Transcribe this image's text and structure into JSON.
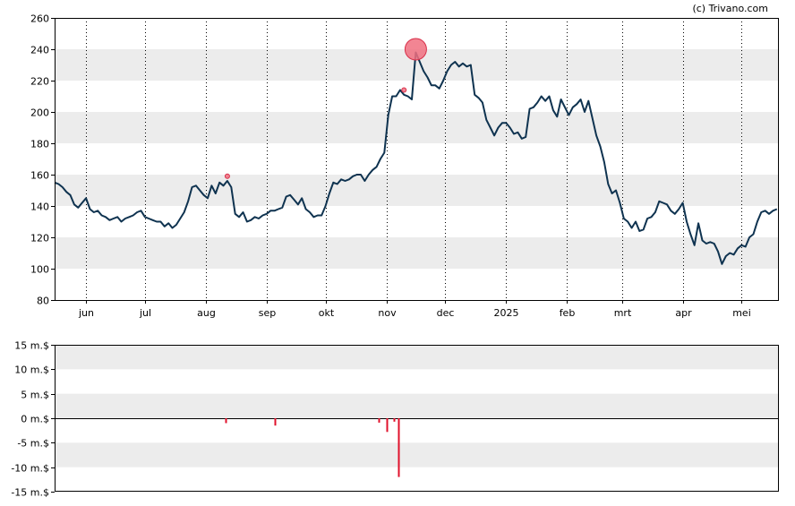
{
  "credit": "(c) Trivano.com",
  "colors": {
    "price_line": "#0f3350",
    "band": "#ececec",
    "insider_bar": "#e0112b",
    "marker_fill": "#f07080",
    "marker_stroke": "#d8304a"
  },
  "chart_data": [
    {
      "type": "line",
      "title": "",
      "ylim": [
        80,
        260
      ],
      "y_ticks": [
        80,
        100,
        120,
        140,
        160,
        180,
        200,
        220,
        240,
        260
      ],
      "y_tick_labels": [
        "80",
        "100",
        "120",
        "140",
        "160",
        "180",
        "200",
        "220",
        "240",
        "260"
      ],
      "x_range": [
        "2024-05-16",
        "2025-05-20"
      ],
      "month_ticks": [
        {
          "date": "2024-06-01",
          "label": "jun"
        },
        {
          "date": "2024-07-01",
          "label": "jul"
        },
        {
          "date": "2024-08-01",
          "label": "aug"
        },
        {
          "date": "2024-09-01",
          "label": "sep"
        },
        {
          "date": "2024-10-01",
          "label": "okt"
        },
        {
          "date": "2024-11-01",
          "label": "nov"
        },
        {
          "date": "2024-12-01",
          "label": "dec"
        },
        {
          "date": "2025-01-01",
          "label": "2025"
        },
        {
          "date": "2025-02-01",
          "label": "feb"
        },
        {
          "date": "2025-03-01",
          "label": "mrt"
        },
        {
          "date": "2025-04-01",
          "label": "apr"
        },
        {
          "date": "2025-05-01",
          "label": "mei"
        }
      ],
      "grid": "alternating horizontal bands, dotted vertical month lines",
      "series": [
        {
          "points": [
            [
              "2024-05-16",
              155
            ],
            [
              "2024-05-18",
              154
            ],
            [
              "2024-05-20",
              152
            ],
            [
              "2024-05-22",
              149
            ],
            [
              "2024-05-24",
              147
            ],
            [
              "2024-05-26",
              141
            ],
            [
              "2024-05-28",
              139
            ],
            [
              "2024-05-30",
              142
            ],
            [
              "2024-06-01",
              145
            ],
            [
              "2024-06-03",
              138
            ],
            [
              "2024-06-05",
              136
            ],
            [
              "2024-06-07",
              137
            ],
            [
              "2024-06-09",
              134
            ],
            [
              "2024-06-11",
              133
            ],
            [
              "2024-06-13",
              131
            ],
            [
              "2024-06-15",
              132
            ],
            [
              "2024-06-17",
              133
            ],
            [
              "2024-06-19",
              130
            ],
            [
              "2024-06-21",
              132
            ],
            [
              "2024-06-23",
              133
            ],
            [
              "2024-06-25",
              134
            ],
            [
              "2024-06-27",
              136
            ],
            [
              "2024-06-29",
              137
            ],
            [
              "2024-07-01",
              133
            ],
            [
              "2024-07-03",
              132
            ],
            [
              "2024-07-05",
              131
            ],
            [
              "2024-07-07",
              130
            ],
            [
              "2024-07-09",
              130
            ],
            [
              "2024-07-11",
              127
            ],
            [
              "2024-07-13",
              129
            ],
            [
              "2024-07-15",
              126
            ],
            [
              "2024-07-17",
              128
            ],
            [
              "2024-07-19",
              132
            ],
            [
              "2024-07-21",
              136
            ],
            [
              "2024-07-23",
              143
            ],
            [
              "2024-07-25",
              152
            ],
            [
              "2024-07-27",
              153
            ],
            [
              "2024-07-29",
              150
            ],
            [
              "2024-07-31",
              147
            ],
            [
              "2024-08-02",
              145
            ],
            [
              "2024-08-04",
              153
            ],
            [
              "2024-08-06",
              148
            ],
            [
              "2024-08-08",
              155
            ],
            [
              "2024-08-10",
              153
            ],
            [
              "2024-08-12",
              156
            ],
            [
              "2024-08-14",
              152
            ],
            [
              "2024-08-16",
              135
            ],
            [
              "2024-08-18",
              133
            ],
            [
              "2024-08-20",
              136
            ],
            [
              "2024-08-22",
              130
            ],
            [
              "2024-08-24",
              131
            ],
            [
              "2024-08-26",
              133
            ],
            [
              "2024-08-28",
              132
            ],
            [
              "2024-08-30",
              134
            ],
            [
              "2024-09-01",
              135
            ],
            [
              "2024-09-03",
              137
            ],
            [
              "2024-09-05",
              137
            ],
            [
              "2024-09-07",
              138
            ],
            [
              "2024-09-09",
              139
            ],
            [
              "2024-09-11",
              146
            ],
            [
              "2024-09-13",
              147
            ],
            [
              "2024-09-15",
              144
            ],
            [
              "2024-09-17",
              141
            ],
            [
              "2024-09-19",
              145
            ],
            [
              "2024-09-21",
              138
            ],
            [
              "2024-09-23",
              136
            ],
            [
              "2024-09-25",
              133
            ],
            [
              "2024-09-27",
              134
            ],
            [
              "2024-09-29",
              134
            ],
            [
              "2024-10-01",
              140
            ],
            [
              "2024-10-03",
              148
            ],
            [
              "2024-10-05",
              155
            ],
            [
              "2024-10-07",
              154
            ],
            [
              "2024-10-09",
              157
            ],
            [
              "2024-10-11",
              156
            ],
            [
              "2024-10-13",
              157
            ],
            [
              "2024-10-15",
              159
            ],
            [
              "2024-10-17",
              160
            ],
            [
              "2024-10-19",
              160
            ],
            [
              "2024-10-21",
              156
            ],
            [
              "2024-10-23",
              160
            ],
            [
              "2024-10-25",
              163
            ],
            [
              "2024-10-27",
              165
            ],
            [
              "2024-10-29",
              170
            ],
            [
              "2024-10-31",
              174
            ],
            [
              "2024-11-02",
              198
            ],
            [
              "2024-11-04",
              210
            ],
            [
              "2024-11-06",
              210
            ],
            [
              "2024-11-08",
              214
            ],
            [
              "2024-11-10",
              211
            ],
            [
              "2024-11-12",
              210
            ],
            [
              "2024-11-14",
              208
            ],
            [
              "2024-11-16",
              238
            ],
            [
              "2024-11-18",
              232
            ],
            [
              "2024-11-20",
              226
            ],
            [
              "2024-11-22",
              222
            ],
            [
              "2024-11-24",
              217
            ],
            [
              "2024-11-26",
              217
            ],
            [
              "2024-11-28",
              215
            ],
            [
              "2024-11-30",
              220
            ],
            [
              "2024-12-02",
              226
            ],
            [
              "2024-12-04",
              230
            ],
            [
              "2024-12-06",
              232
            ],
            [
              "2024-12-08",
              229
            ],
            [
              "2024-12-10",
              231
            ],
            [
              "2024-12-12",
              229
            ],
            [
              "2024-12-14",
              230
            ],
            [
              "2024-12-16",
              211
            ],
            [
              "2024-12-18",
              209
            ],
            [
              "2024-12-20",
              206
            ],
            [
              "2024-12-22",
              195
            ],
            [
              "2024-12-24",
              190
            ],
            [
              "2024-12-26",
              185
            ],
            [
              "2024-12-28",
              190
            ],
            [
              "2024-12-30",
              193
            ],
            [
              "2025-01-01",
              193
            ],
            [
              "2025-01-03",
              190
            ],
            [
              "2025-01-05",
              186
            ],
            [
              "2025-01-07",
              187
            ],
            [
              "2025-01-09",
              183
            ],
            [
              "2025-01-11",
              184
            ],
            [
              "2025-01-13",
              202
            ],
            [
              "2025-01-15",
              203
            ],
            [
              "2025-01-17",
              206
            ],
            [
              "2025-01-19",
              210
            ],
            [
              "2025-01-21",
              207
            ],
            [
              "2025-01-23",
              210
            ],
            [
              "2025-01-25",
              201
            ],
            [
              "2025-01-27",
              197
            ],
            [
              "2025-01-29",
              208
            ],
            [
              "2025-01-31",
              203
            ],
            [
              "2025-02-02",
              198
            ],
            [
              "2025-02-04",
              203
            ],
            [
              "2025-02-06",
              205
            ],
            [
              "2025-02-08",
              208
            ],
            [
              "2025-02-10",
              200
            ],
            [
              "2025-02-12",
              207
            ],
            [
              "2025-02-14",
              196
            ],
            [
              "2025-02-16",
              185
            ],
            [
              "2025-02-18",
              178
            ],
            [
              "2025-02-20",
              168
            ],
            [
              "2025-02-22",
              154
            ],
            [
              "2025-02-24",
              148
            ],
            [
              "2025-02-26",
              150
            ],
            [
              "2025-02-28",
              142
            ],
            [
              "2025-03-02",
              132
            ],
            [
              "2025-03-04",
              130
            ],
            [
              "2025-03-06",
              126
            ],
            [
              "2025-03-08",
              130
            ],
            [
              "2025-03-10",
              124
            ],
            [
              "2025-03-12",
              125
            ],
            [
              "2025-03-14",
              132
            ],
            [
              "2025-03-16",
              133
            ],
            [
              "2025-03-18",
              136
            ],
            [
              "2025-03-20",
              143
            ],
            [
              "2025-03-22",
              142
            ],
            [
              "2025-03-24",
              141
            ],
            [
              "2025-03-26",
              137
            ],
            [
              "2025-03-28",
              135
            ],
            [
              "2025-03-30",
              138
            ],
            [
              "2025-04-01",
              142
            ],
            [
              "2025-04-03",
              130
            ],
            [
              "2025-04-05",
              122
            ],
            [
              "2025-04-07",
              115
            ],
            [
              "2025-04-09",
              129
            ],
            [
              "2025-04-11",
              118
            ],
            [
              "2025-04-13",
              116
            ],
            [
              "2025-04-15",
              117
            ],
            [
              "2025-04-17",
              116
            ],
            [
              "2025-04-19",
              111
            ],
            [
              "2025-04-21",
              103
            ],
            [
              "2025-04-23",
              108
            ],
            [
              "2025-04-25",
              110
            ],
            [
              "2025-04-27",
              109
            ],
            [
              "2025-04-29",
              113
            ],
            [
              "2025-05-01",
              115
            ],
            [
              "2025-05-03",
              114
            ],
            [
              "2025-05-05",
              120
            ],
            [
              "2025-05-07",
              122
            ],
            [
              "2025-05-09",
              130
            ],
            [
              "2025-05-11",
              136
            ],
            [
              "2025-05-13",
              137
            ],
            [
              "2025-05-15",
              135
            ],
            [
              "2025-05-17",
              137
            ],
            [
              "2025-05-19",
              138
            ]
          ]
        }
      ],
      "annotations": [
        {
          "type": "marker",
          "size": "large",
          "date": "2024-11-16",
          "value": 240
        },
        {
          "type": "marker",
          "size": "small",
          "date": "2024-11-10",
          "value": 214
        },
        {
          "type": "marker",
          "size": "small",
          "date": "2024-08-12",
          "value": 159
        }
      ]
    },
    {
      "type": "bar",
      "title": "",
      "ylim": [
        -15,
        15
      ],
      "y_ticks": [
        -15,
        -10,
        -5,
        0,
        5,
        10,
        15
      ],
      "y_tick_labels": [
        "-15 m.$",
        "-10 m.$",
        "-5 m.$",
        "0 m.$",
        "5 m.$",
        "10 m.$",
        "15 m.$"
      ],
      "grid": "alternating horizontal bands, zero line",
      "series": [
        {
          "points": [
            [
              "2024-08-11",
              -1.0
            ],
            [
              "2024-09-05",
              -1.5
            ],
            [
              "2024-10-28",
              -0.9
            ],
            [
              "2024-11-01",
              -2.8
            ],
            [
              "2024-11-05",
              -0.7
            ],
            [
              "2024-11-07",
              -12.0
            ]
          ]
        }
      ]
    }
  ]
}
